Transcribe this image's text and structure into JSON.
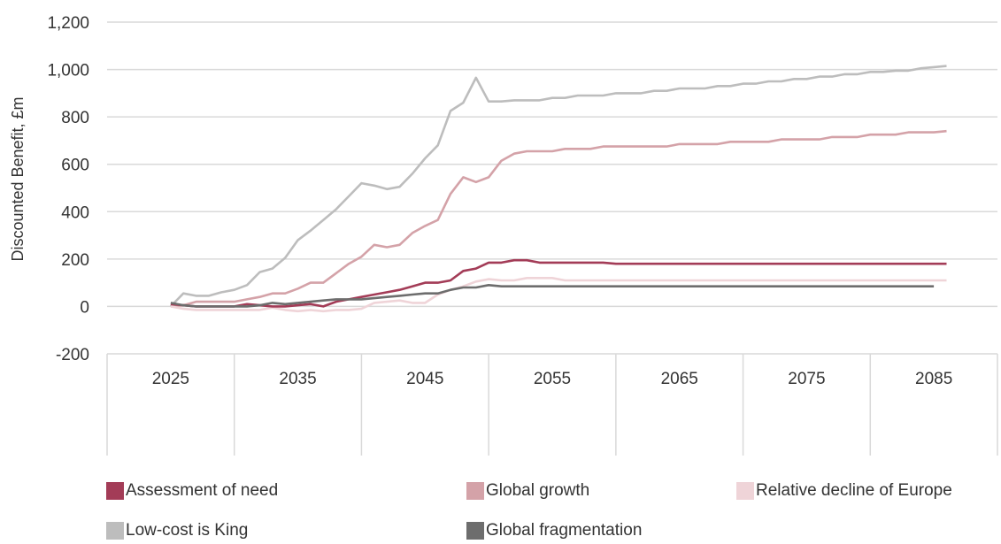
{
  "chart_data": {
    "type": "line",
    "ylabel": "Discounted Benefit, £m",
    "xlabel": "",
    "ylim": [
      -200,
      1200
    ],
    "y_ticks": [
      "-200",
      "0",
      "200",
      "400",
      "600",
      "800",
      "1,000",
      "1,200"
    ],
    "x_ticks": [
      "2025",
      "2035",
      "2045",
      "2055",
      "2065",
      "2075",
      "2085"
    ],
    "grid": true,
    "legend_position": "bottom",
    "series": [
      {
        "name": "Assessment of need",
        "color": "#a33c57",
        "x": [
          2025,
          2026,
          2027,
          2028,
          2029,
          2030,
          2031,
          2032,
          2033,
          2034,
          2035,
          2036,
          2037,
          2038,
          2039,
          2040,
          2041,
          2042,
          2043,
          2044,
          2045,
          2046,
          2047,
          2048,
          2049,
          2050,
          2051,
          2052,
          2053,
          2054,
          2055,
          2056,
          2057,
          2058,
          2059,
          2060,
          2061,
          2062,
          2063,
          2064,
          2065,
          2066,
          2067,
          2068,
          2069,
          2070,
          2071,
          2072,
          2073,
          2074,
          2075,
          2076,
          2077,
          2078,
          2079,
          2080,
          2081,
          2082,
          2083,
          2084,
          2085,
          2086
        ],
        "y": [
          10,
          5,
          0,
          0,
          0,
          0,
          10,
          5,
          0,
          0,
          5,
          10,
          0,
          20,
          30,
          40,
          50,
          60,
          70,
          85,
          100,
          100,
          110,
          150,
          160,
          185,
          185,
          195,
          195,
          185,
          185,
          185,
          185,
          185,
          185,
          180,
          180,
          180,
          180,
          180,
          180,
          180,
          180,
          180,
          180,
          180,
          180,
          180,
          180,
          180,
          180,
          180,
          180,
          180,
          180,
          180,
          180,
          180,
          180,
          180,
          180,
          180
        ]
      },
      {
        "name": "Global growth",
        "color": "#d4a2a8",
        "x": [
          2025,
          2026,
          2027,
          2028,
          2029,
          2030,
          2031,
          2032,
          2033,
          2034,
          2035,
          2036,
          2037,
          2038,
          2039,
          2040,
          2041,
          2042,
          2043,
          2044,
          2045,
          2046,
          2047,
          2048,
          2049,
          2050,
          2051,
          2052,
          2053,
          2054,
          2055,
          2056,
          2057,
          2058,
          2059,
          2060,
          2061,
          2062,
          2063,
          2064,
          2065,
          2066,
          2067,
          2068,
          2069,
          2070,
          2071,
          2072,
          2073,
          2074,
          2075,
          2076,
          2077,
          2078,
          2079,
          2080,
          2081,
          2082,
          2083,
          2084,
          2085,
          2086
        ],
        "y": [
          0,
          5,
          20,
          20,
          20,
          20,
          30,
          40,
          55,
          55,
          75,
          100,
          100,
          140,
          180,
          210,
          260,
          250,
          260,
          310,
          340,
          365,
          475,
          545,
          525,
          545,
          615,
          645,
          655,
          655,
          655,
          665,
          665,
          665,
          675,
          675,
          675,
          675,
          675,
          675,
          685,
          685,
          685,
          685,
          695,
          695,
          695,
          695,
          705,
          705,
          705,
          705,
          715,
          715,
          715,
          725,
          725,
          725,
          735,
          735,
          735,
          740
        ]
      },
      {
        "name": "Relative decline of Europe",
        "color": "#efd4d8",
        "x": [
          2025,
          2026,
          2027,
          2028,
          2029,
          2030,
          2031,
          2032,
          2033,
          2034,
          2035,
          2036,
          2037,
          2038,
          2039,
          2040,
          2041,
          2042,
          2043,
          2044,
          2045,
          2046,
          2047,
          2048,
          2049,
          2050,
          2051,
          2052,
          2053,
          2054,
          2055,
          2056,
          2057,
          2058,
          2059,
          2060,
          2061,
          2062,
          2063,
          2064,
          2065,
          2066,
          2067,
          2068,
          2069,
          2070,
          2071,
          2072,
          2073,
          2074,
          2075,
          2076,
          2077,
          2078,
          2079,
          2080,
          2081,
          2082,
          2083,
          2084,
          2085,
          2086
        ],
        "y": [
          0,
          -10,
          -15,
          -15,
          -15,
          -15,
          -15,
          -15,
          -5,
          -15,
          -20,
          -15,
          -20,
          -15,
          -15,
          -10,
          15,
          20,
          25,
          15,
          15,
          50,
          70,
          85,
          105,
          115,
          110,
          110,
          120,
          120,
          120,
          110,
          110,
          110,
          110,
          110,
          110,
          110,
          110,
          110,
          110,
          110,
          110,
          110,
          110,
          110,
          110,
          110,
          110,
          110,
          110,
          110,
          110,
          110,
          110,
          110,
          110,
          110,
          110,
          110,
          110,
          110
        ]
      },
      {
        "name": "Low-cost is King",
        "color": "#bdbdbd",
        "x": [
          2025,
          2026,
          2027,
          2028,
          2029,
          2030,
          2031,
          2032,
          2033,
          2034,
          2035,
          2036,
          2037,
          2038,
          2039,
          2040,
          2041,
          2042,
          2043,
          2044,
          2045,
          2046,
          2047,
          2048,
          2049,
          2050,
          2051,
          2052,
          2053,
          2054,
          2055,
          2056,
          2057,
          2058,
          2059,
          2060,
          2061,
          2062,
          2063,
          2064,
          2065,
          2066,
          2067,
          2068,
          2069,
          2070,
          2071,
          2072,
          2073,
          2074,
          2075,
          2076,
          2077,
          2078,
          2079,
          2080,
          2081,
          2082,
          2083,
          2084,
          2085,
          2086
        ],
        "y": [
          0,
          55,
          45,
          45,
          60,
          70,
          90,
          145,
          160,
          205,
          280,
          320,
          365,
          410,
          465,
          520,
          510,
          495,
          505,
          560,
          625,
          680,
          825,
          860,
          965,
          865,
          865,
          870,
          870,
          870,
          880,
          880,
          890,
          890,
          890,
          900,
          900,
          900,
          910,
          910,
          920,
          920,
          920,
          930,
          930,
          940,
          940,
          950,
          950,
          960,
          960,
          970,
          970,
          980,
          980,
          990,
          990,
          995,
          995,
          1005,
          1010,
          1015
        ]
      },
      {
        "name": "Global fragmentation",
        "color": "#6d6d6d",
        "x": [
          2025,
          2026,
          2027,
          2028,
          2029,
          2030,
          2031,
          2032,
          2033,
          2034,
          2035,
          2036,
          2037,
          2038,
          2039,
          2040,
          2041,
          2042,
          2043,
          2044,
          2045,
          2046,
          2047,
          2048,
          2049,
          2050,
          2051,
          2052,
          2053,
          2054,
          2055,
          2056,
          2057,
          2058,
          2059,
          2060,
          2061,
          2062,
          2063,
          2064,
          2065,
          2066,
          2067,
          2068,
          2069,
          2070,
          2071,
          2072,
          2073,
          2074,
          2075,
          2076,
          2077,
          2078,
          2079,
          2080,
          2081,
          2082,
          2083,
          2084,
          2085
        ],
        "y": [
          15,
          5,
          0,
          0,
          0,
          0,
          0,
          5,
          15,
          10,
          15,
          20,
          25,
          30,
          30,
          30,
          35,
          40,
          45,
          50,
          55,
          55,
          70,
          80,
          80,
          90,
          85,
          85,
          85,
          85,
          85,
          85,
          85,
          85,
          85,
          85,
          85,
          85,
          85,
          85,
          85,
          85,
          85,
          85,
          85,
          85,
          85,
          85,
          85,
          85,
          85,
          85,
          85,
          85,
          85,
          85,
          85,
          85,
          85,
          85,
          85
        ]
      }
    ]
  }
}
